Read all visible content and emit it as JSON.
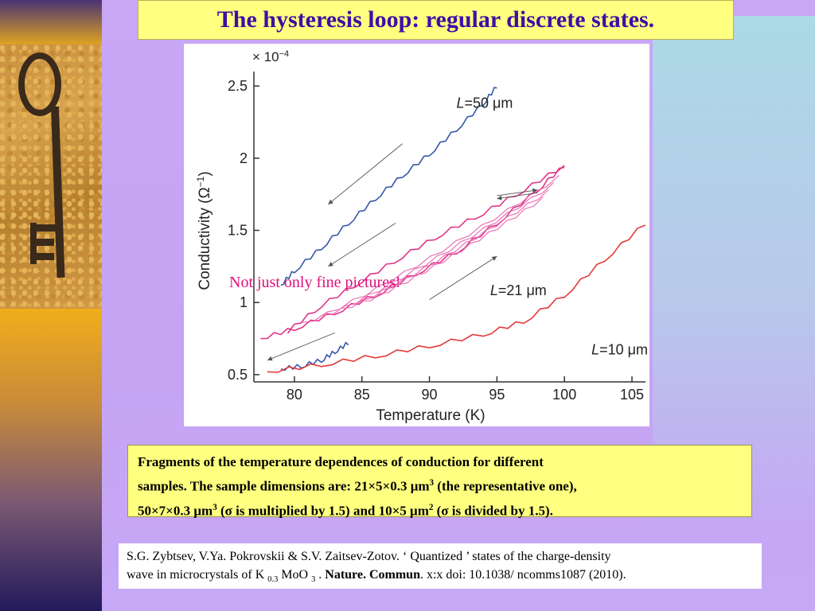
{
  "title": "The hysteresis loop: regular discrete states.",
  "annotation": "Not just only fine pictures!",
  "chart_data": {
    "type": "line",
    "xlabel": "Temperature (K)",
    "ylabel": "Conductivity (Ω",
    "ylabel_sup": "−1",
    "ylabel_close": ")",
    "scale_prefix": "× 10",
    "scale_exp": "−4",
    "xlim": [
      77,
      106
    ],
    "ylim": [
      0.45,
      2.6
    ],
    "xticks": [
      "80",
      "85",
      "90",
      "95",
      "100",
      "105"
    ],
    "yticks": [
      "0.5",
      "1",
      "1.5",
      "2",
      "2.5"
    ],
    "grid": false,
    "series": [
      {
        "name": "L=50 μm",
        "label_main": "L",
        "label_rest": "=50 μm",
        "color": "#3558a8",
        "x": [
          79,
          80,
          82,
          84,
          86,
          88,
          90,
          92,
          94,
          95
        ],
        "y": [
          1.12,
          1.22,
          1.38,
          1.55,
          1.72,
          1.88,
          2.03,
          2.2,
          2.38,
          2.5
        ]
      },
      {
        "name": "L=50 μm (lower)",
        "color": "#3558a8",
        "x": [
          79,
          80.5,
          82,
          83,
          84
        ],
        "y": [
          0.54,
          0.56,
          0.6,
          0.66,
          0.72
        ]
      },
      {
        "name": "L=21 μm",
        "label_main": "L",
        "label_rest": "=21 μm",
        "color": "#e0368a",
        "x": [
          77.5,
          80,
          83,
          86,
          89,
          92,
          95,
          98,
          100
        ],
        "y": [
          0.75,
          0.82,
          0.93,
          1.05,
          1.2,
          1.35,
          1.55,
          1.78,
          1.95
        ]
      },
      {
        "name": "L=21 μm (return)",
        "color": "#e0368a",
        "x": [
          100,
          97,
          94,
          91,
          88,
          85,
          82,
          79.5
        ],
        "y": [
          1.95,
          1.78,
          1.62,
          1.48,
          1.32,
          1.15,
          0.98,
          0.8
        ]
      },
      {
        "name": "L=10 μm",
        "label_main": "L",
        "label_rest": "=10 μm",
        "color": "#e33a3a",
        "x": [
          78,
          82,
          86,
          90,
          94,
          97,
          100,
          103,
          106
        ],
        "y": [
          0.52,
          0.57,
          0.63,
          0.7,
          0.78,
          0.87,
          1.05,
          1.3,
          1.55
        ]
      }
    ],
    "label_positions": [
      [
        92,
        2.35
      ],
      [
        94.5,
        1.05
      ],
      [
        102,
        0.64
      ]
    ]
  },
  "caption": {
    "line1": "Fragments of the temperature dependences of conduction for different",
    "line2a": "samples. The sample dimensions are: 21×5×0.3 μm",
    "line2sup": "3",
    "line2b": " (the representative one),",
    "line3a": "50×7×0.3 μm",
    "line3sup": "3",
    "line3b": " (σ is multiplied by 1.5) and 10×5 μm",
    "line3sup2": "2",
    "line3c": " (σ is divided by 1.5)."
  },
  "reference": {
    "line1": "S.G. Zybtsev, V.Ya. Pokrovskii & S.V. Zaitsev-Zotov. ‘ Quantized ’ states of the charge-density",
    "line2a": "wave in microcrystals of K ",
    "sub1": "0.3",
    "line2b": " MoO ",
    "sub2": "3",
    "line2c": " . ",
    "journal": "Nature. Commun",
    "line2d": ". x:x doi: 10.1038/ ncomms1087 (2010)."
  }
}
